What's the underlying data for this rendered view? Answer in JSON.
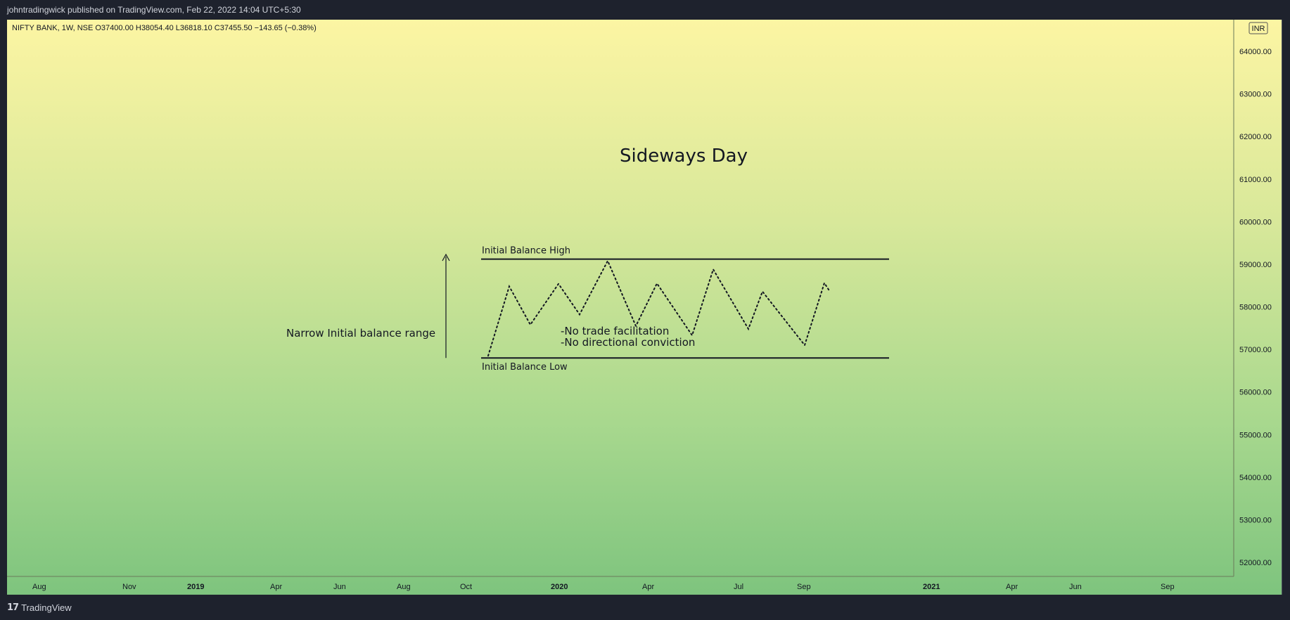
{
  "header": {
    "published": "johntradingwick published on TradingView.com, Feb 22, 2022 14:04 UTC+5:30"
  },
  "footer": {
    "brand": "TradingView"
  },
  "chart_data": {
    "type": "line",
    "symbol_info": "NIFTY BANK, 1W, NSE  O37400.00  H38054.40  L36818.10  C37455.50  −143.65 (−0.38%)",
    "currency": "INR",
    "title": "Sideways Day",
    "y_ticks": [
      "64000.00",
      "63000.00",
      "62000.00",
      "61000.00",
      "60000.00",
      "59000.00",
      "58000.00",
      "57000.00",
      "56000.00",
      "55000.00",
      "54000.00",
      "53000.00",
      "52000.00"
    ],
    "x_ticks": [
      {
        "label": "Aug",
        "bold": false
      },
      {
        "label": "Nov",
        "bold": false
      },
      {
        "label": "2019",
        "bold": true
      },
      {
        "label": "Apr",
        "bold": false
      },
      {
        "label": "Jun",
        "bold": false
      },
      {
        "label": "Aug",
        "bold": false
      },
      {
        "label": "Oct",
        "bold": false
      },
      {
        "label": "2020",
        "bold": true
      },
      {
        "label": "Apr",
        "bold": false
      },
      {
        "label": "Jul",
        "bold": false
      },
      {
        "label": "Sep",
        "bold": false
      },
      {
        "label": "2021",
        "bold": true
      },
      {
        "label": "Apr",
        "bold": false
      },
      {
        "label": "Jun",
        "bold": false
      },
      {
        "label": "Sep",
        "bold": false
      }
    ],
    "ylim": [
      51700,
      64500
    ],
    "ib_high": 59120,
    "ib_low": 56800,
    "labels": {
      "ib_high": "Initial Balance High",
      "ib_low": "Initial Balance Low",
      "range": "Narrow Initial balance range",
      "note1": "-No trade facilitation",
      "note2": "-No directional conviction"
    },
    "path_values": [
      56850,
      58480,
      57580,
      58540,
      57820,
      59080,
      57550,
      58550,
      57330,
      58880,
      57480,
      58360,
      57100,
      58560,
      58380
    ]
  }
}
